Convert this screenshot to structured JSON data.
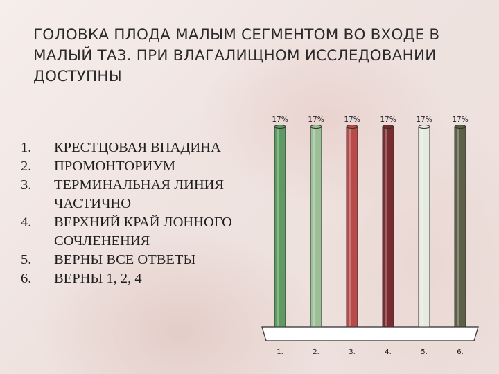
{
  "question": {
    "title": "ГОЛОВКА ПЛОДА МАЛЫМ СЕГМЕНТОМ ВО ВХОДЕ В МАЛЫЙ ТАЗ. ПРИ ВЛАГАЛИЩНОМ ИССЛЕДОВАНИИ ДОСТУПНЫ"
  },
  "answers": [
    {
      "num": "1.",
      "text": "КРЕСТЦОВАЯ ВПАДИНА"
    },
    {
      "num": "2.",
      "text": "ПРОМОНТОРИУМ"
    },
    {
      "num": "3.",
      "text": "ТЕРМИНАЛЬНАЯ ЛИНИЯ ЧАСТИЧНО"
    },
    {
      "num": "4.",
      "text": "ВЕРХНИЙ КРАЙ ЛОННОГО СОЧЛЕНЕНИЯ"
    },
    {
      "num": "5.",
      "text": "ВЕРНЫ ВСЕ ОТВЕТЫ"
    },
    {
      "num": "6.",
      "text": "ВЕРНЫ 1, 2, 4"
    }
  ],
  "chart_data": {
    "type": "bar",
    "categories": [
      "1.",
      "2.",
      "3.",
      "4.",
      "5.",
      "6."
    ],
    "values": [
      17,
      17,
      17,
      17,
      17,
      17
    ],
    "data_labels": [
      "17%",
      "17%",
      "17%",
      "17%",
      "17%",
      "17%"
    ],
    "colors": [
      "#5e9a62",
      "#9cbf98",
      "#b94a4a",
      "#7a2b30",
      "#e6ebe0",
      "#5b6047"
    ],
    "ylim": [
      0,
      17
    ]
  }
}
